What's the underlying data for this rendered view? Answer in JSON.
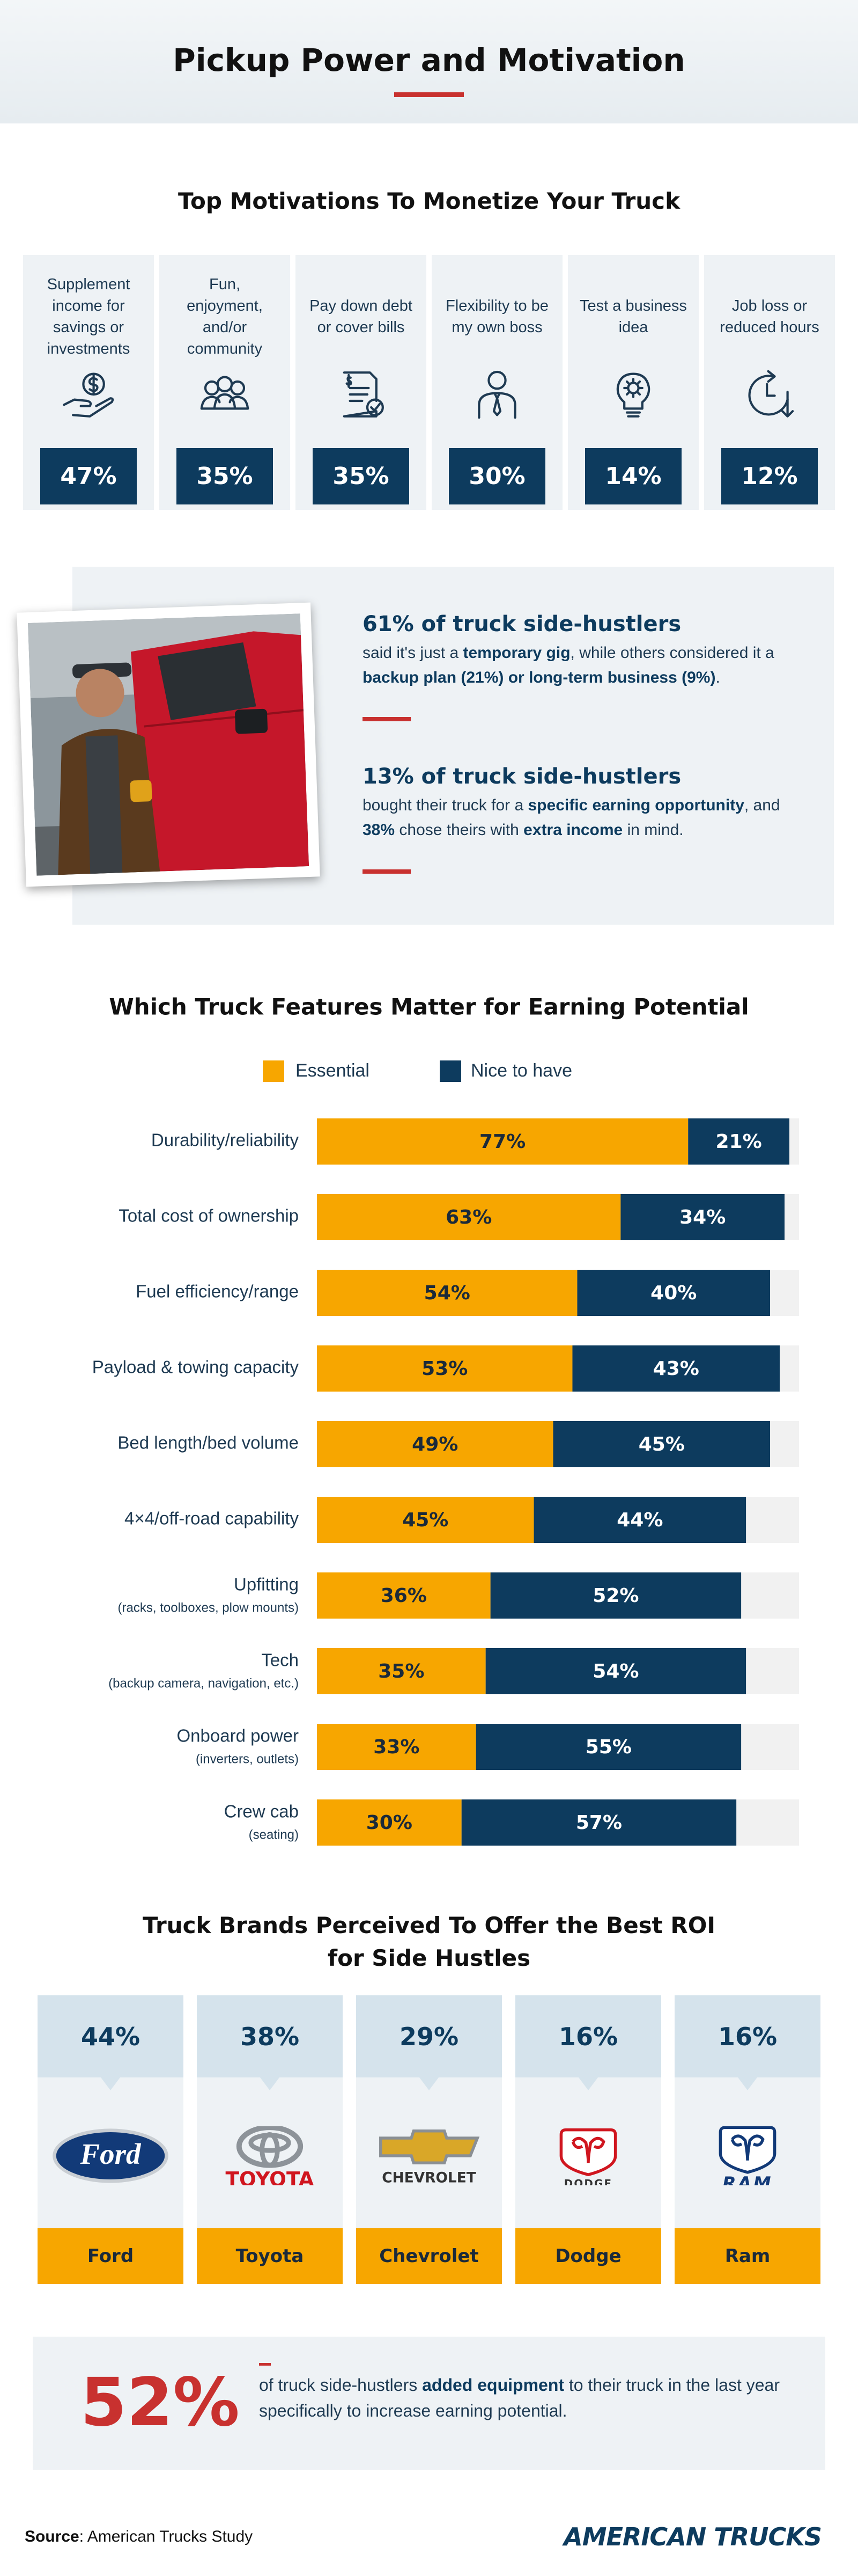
{
  "header": {
    "title": "Pickup Power and Motivation"
  },
  "motivations": {
    "title": "Top Motivations To Monetize Your Truck",
    "items": [
      {
        "label": "Supplement income for savings or investments",
        "value": "47%"
      },
      {
        "label": "Fun, enjoyment, and/or community",
        "value": "35%"
      },
      {
        "label": "Pay down debt or cover bills",
        "value": "35%"
      },
      {
        "label": "Flexibility to be my own boss",
        "value": "30%"
      },
      {
        "label": "Test a business idea",
        "value": "14%"
      },
      {
        "label": "Job loss or reduced hours",
        "value": "12%"
      }
    ]
  },
  "highlights": [
    {
      "heading": "61% of truck side-hustlers",
      "body": [
        "said it's just a ",
        "temporary gig",
        ", while others considered it a ",
        "backup plan (21%) or long-term business (9%)",
        "."
      ]
    },
    {
      "heading": "13% of truck side-hustlers",
      "body": [
        "bought their truck for a ",
        "specific earning opportunity",
        ", and ",
        "38%",
        " chose theirs with ",
        "extra income",
        " in mind."
      ]
    }
  ],
  "chart_data": {
    "type": "bar",
    "orientation": "horizontal",
    "stacked": true,
    "title": "Which Truck Features Matter for Earning Potential",
    "categories": [
      "Durability/reliability",
      "Total cost of ownership",
      "Fuel efficiency/range",
      "Payload & towing capacity",
      "Bed length/bed volume",
      "4×4/off-road capability",
      "Upfitting",
      "Tech",
      "Onboard power",
      "Crew cab"
    ],
    "category_notes": [
      null,
      null,
      null,
      null,
      null,
      null,
      "(racks, toolboxes, plow mounts)",
      "(backup camera, navigation, etc.)",
      "(inverters, outlets)",
      "(seating)"
    ],
    "series": [
      {
        "name": "Essential",
        "color": "#f7a600",
        "values": [
          77,
          63,
          54,
          53,
          49,
          45,
          36,
          35,
          33,
          30
        ],
        "value_labels": [
          "77%",
          "63%",
          "54%",
          "53%",
          "49%",
          "45%",
          "36%",
          "35%",
          "33%",
          "30%"
        ]
      },
      {
        "name": "Nice to have",
        "color": "#0d3b5e",
        "values": [
          21,
          34,
          40,
          43,
          45,
          44,
          52,
          54,
          55,
          57
        ],
        "value_labels": [
          "21%",
          "34%",
          "40%",
          "43%",
          "45%",
          "44%",
          "52%",
          "54%",
          "55%",
          "57%"
        ]
      }
    ],
    "xlim": [
      0,
      100
    ],
    "legend": "top"
  },
  "brands": {
    "title_lines": [
      "Truck Brands Perceived To Offer the Best ROI",
      "for Side Hustles"
    ],
    "items": [
      {
        "name": "Ford",
        "value": "44%",
        "logo_text": "Ford"
      },
      {
        "name": "Toyota",
        "value": "38%",
        "logo_text": "TOYOTA"
      },
      {
        "name": "Chevrolet",
        "value": "29%",
        "logo_text": "CHEVROLET"
      },
      {
        "name": "Dodge",
        "value": "16%",
        "logo_text": "DODGE"
      },
      {
        "name": "Ram",
        "value": "16%",
        "logo_text": "RAM"
      }
    ]
  },
  "callout": {
    "value": "52%",
    "text": [
      "of truck side-hustlers ",
      "added equipment",
      " to their truck in the last year specifically to increase earning potential."
    ]
  },
  "footer": {
    "source_label": "Source",
    "source_text": ": American Trucks Study",
    "logo": "AMERICAN TRUCKS"
  }
}
